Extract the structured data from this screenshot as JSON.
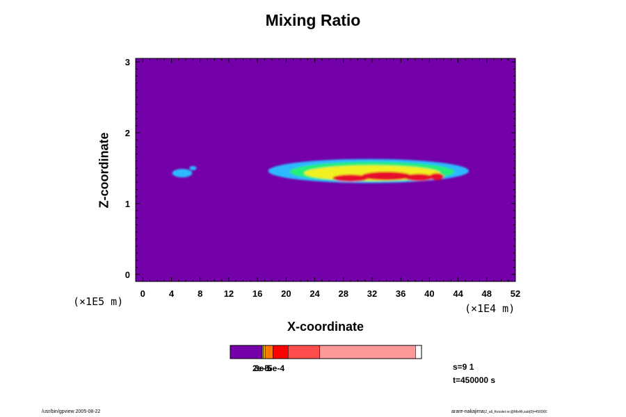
{
  "chart_data": {
    "type": "heatmap",
    "title": "Mixing Ratio",
    "xlabel": "X-coordinate",
    "ylabel": "Z-coordinate",
    "x_unit_label": "(×1E4 m)",
    "y_unit_label": "(×1E5 m)",
    "x_ticks": [
      "0",
      "4",
      "8",
      "12",
      "16",
      "20",
      "24",
      "28",
      "32",
      "36",
      "40",
      "44",
      "48",
      "52"
    ],
    "y_ticks": [
      "0",
      "1",
      "2",
      "3"
    ],
    "xlim": [
      -1,
      52
    ],
    "ylim": [
      -0.1,
      3.05
    ],
    "background_color": "#7300a8",
    "field": [
      {
        "cx": 5.5,
        "cz": 1.43,
        "rx": 1.4,
        "rz": 0.06,
        "level": "low"
      },
      {
        "cx": 7.0,
        "cz": 1.5,
        "rx": 0.5,
        "rz": 0.03,
        "level": "low"
      },
      {
        "cx": 31.5,
        "cz": 1.46,
        "rx": 14.0,
        "rz": 0.17,
        "level": "low"
      },
      {
        "cx": 32.0,
        "cz": 1.45,
        "rx": 11.5,
        "rz": 0.14,
        "level": "mid"
      },
      {
        "cx": 32.0,
        "cz": 1.43,
        "rx": 9.5,
        "rz": 0.11,
        "level": "high"
      },
      {
        "cx": 29.0,
        "cz": 1.36,
        "rx": 2.5,
        "rz": 0.05,
        "level": "peak"
      },
      {
        "cx": 34.0,
        "cz": 1.39,
        "rx": 3.5,
        "rz": 0.06,
        "level": "peak"
      },
      {
        "cx": 38.5,
        "cz": 1.37,
        "rx": 2.0,
        "rz": 0.05,
        "level": "peak"
      },
      {
        "cx": 41.0,
        "cz": 1.38,
        "rx": 1.0,
        "rz": 0.05,
        "level": "peak"
      }
    ],
    "level_colors": {
      "low": "#2fb8ff",
      "mid": "#26ee7a",
      "high": "#f0f020",
      "peak": "#e8102a"
    },
    "colorbar": {
      "colors": [
        "#7300a8",
        "#9b9b00",
        "#ffc000",
        "#ff7a00",
        "#ff0000",
        "#ff4d4d",
        "#fc9a9a"
      ],
      "fractions": [
        0.167,
        0.008,
        0.008,
        0.04,
        0.08,
        0.165,
        0.502
      ],
      "labels_overlapping": [
        "2e-5",
        "3e-5",
        "5e-4"
      ]
    }
  },
  "annotations": {
    "s": "s=9 1",
    "t": "t=450000 s"
  },
  "footer": {
    "left": "/usr/bin/gpview 2005-08-22",
    "right_main": "arare-nakajima",
    "right_small": "(2_all_Kessler.nc@MixRt,sub[0]=450000"
  }
}
